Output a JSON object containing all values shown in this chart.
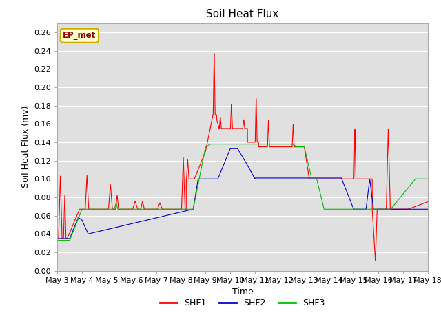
{
  "title": "Soil Heat Flux",
  "xlabel": "Time",
  "ylabel": "Soil Heat Flux (mv)",
  "ylim": [
    0.0,
    0.27
  ],
  "yticks": [
    0.0,
    0.02,
    0.04,
    0.06,
    0.08,
    0.1,
    0.12,
    0.14,
    0.16,
    0.18,
    0.2,
    0.22,
    0.24,
    0.26
  ],
  "xtick_labels": [
    "May 3",
    "May 4",
    "May 5",
    "May 6",
    "May 7",
    "May 8",
    "May 9",
    "May 10",
    "May 11",
    "May 12",
    "May 13",
    "May 14",
    "May 15",
    "May 16",
    "May 17",
    "May 18"
  ],
  "legend_label": "EP_met",
  "shf1_color": "#ff0000",
  "shf2_color": "#0000cc",
  "shf3_color": "#00bb00",
  "background_color": "#e0e0e0",
  "grid_color": "#ffffff",
  "title_fontsize": 11,
  "axis_label_fontsize": 9,
  "tick_fontsize": 8
}
